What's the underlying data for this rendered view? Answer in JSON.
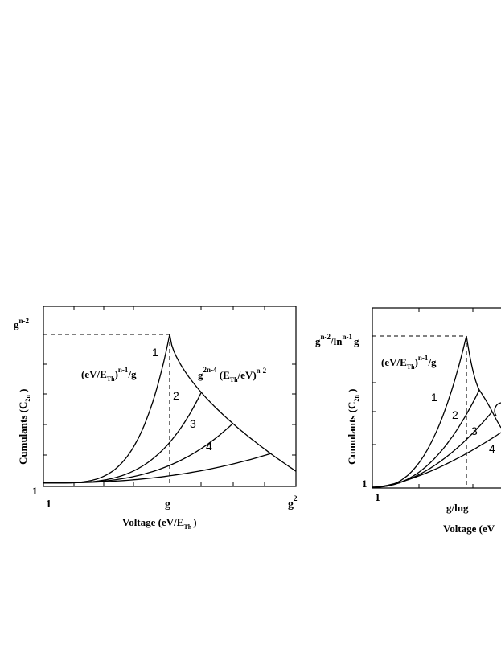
{
  "chart_data": [
    {
      "type": "line",
      "ylabel": "Cumulants",
      "ylabel_sub": "2n",
      "xlabel": "Voltage (eV/E",
      "xlabel_sub": "Th",
      "xlabel_close": ")",
      "x_ticks": [
        "1",
        "g",
        "g"
      ],
      "x_tick_sup": "2",
      "y_ticks": [
        "1",
        "g"
      ],
      "y_tick_sup": "n-2",
      "x_scale": "log",
      "y_scale": "log",
      "annotations": {
        "left_formula": [
          "(eV/E",
          "Th",
          ")",
          "n-1",
          "/g"
        ],
        "right_formula": [
          "g",
          "2n-4",
          " (E",
          "Th",
          "/eV)",
          "n-2"
        ]
      },
      "series": [
        {
          "name": "1",
          "peak_x": 1.0
        },
        {
          "name": "2",
          "peak_x": 1.25
        },
        {
          "name": "3",
          "peak_x": 1.5
        },
        {
          "name": "4",
          "peak_x": 1.8
        }
      ]
    },
    {
      "type": "line",
      "ylabel": "Cumulants",
      "ylabel_sub": "2n",
      "xlabel": "Voltage (eV",
      "x_ticks": [
        "1",
        "g/lng"
      ],
      "y_ticks": [
        "1",
        "g"
      ],
      "y_tick_sup_1": "n-2",
      "y_tick_mid": "/ln",
      "y_tick_sup_2": "n-1",
      "y_tick_end": "g",
      "annotations": {
        "left_formula": [
          "(eV/E",
          "Th",
          ")",
          "n-1",
          "/g"
        ]
      },
      "series": [
        {
          "name": "1"
        },
        {
          "name": "2"
        },
        {
          "name": "3"
        },
        {
          "name": "4"
        }
      ]
    }
  ]
}
